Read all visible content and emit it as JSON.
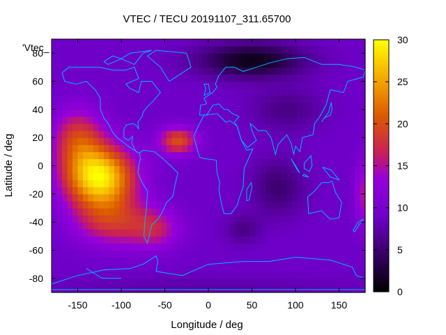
{
  "chart_data": {
    "type": "heatmap",
    "title": "VTEC / TECU 20191107_311.65700",
    "xlabel": "Longitude / deg",
    "ylabel": "Latitude / deg",
    "xlim": [
      -180,
      180
    ],
    "ylim": [
      -90,
      90
    ],
    "xticks": [
      -150,
      -100,
      -50,
      0,
      50,
      100,
      150
    ],
    "yticks": [
      -80,
      -60,
      -40,
      -20,
      0,
      20,
      40,
      60,
      80
    ],
    "colorbar": {
      "min": 0,
      "max": 30,
      "ticks": [
        0,
        5,
        10,
        15,
        20,
        25,
        30
      ]
    },
    "series_label": "'Vtec_",
    "features": [
      {
        "name": "main-crest",
        "lon": -125,
        "lat": -8,
        "peak_tecu": 29
      },
      {
        "name": "secondary-crest",
        "lon": -35,
        "lat": 18,
        "peak_tecu": 22
      },
      {
        "name": "north-polar-minimum",
        "lon": 50,
        "lat": 75,
        "min_tecu": 1
      },
      {
        "name": "asia-minimum",
        "lon": 80,
        "lat": -15,
        "min_tecu": 4
      }
    ],
    "background_tecu": 9
  }
}
